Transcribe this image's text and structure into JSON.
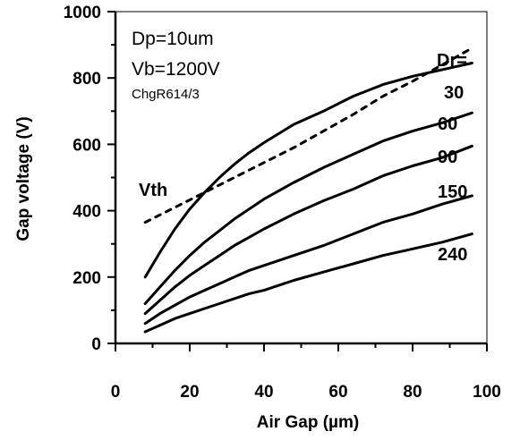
{
  "chart_data": {
    "type": "line",
    "title": "",
    "xlabel": "Air Gap (µm)",
    "ylabel": "Gap voltage (V)",
    "xlim": [
      0,
      100
    ],
    "ylim": [
      0,
      1000
    ],
    "x_ticks": [
      "0",
      "20",
      "40",
      "60",
      "80",
      "100"
    ],
    "y_ticks": [
      "0",
      "200",
      "400",
      "600",
      "800",
      "1000"
    ],
    "grid": false,
    "legend": "none",
    "annotations": {
      "dp": "Dp=10um",
      "vb": "Vb=1200V",
      "chg": "ChgR614/3",
      "dr_header": "Dr="
    },
    "series": [
      {
        "name": "30",
        "style": "solid",
        "x": [
          8,
          12,
          16,
          20,
          24,
          28,
          32,
          36,
          40,
          48,
          56,
          64,
          72,
          80,
          88,
          96
        ],
        "y": [
          200,
          275,
          345,
          405,
          455,
          500,
          540,
          575,
          605,
          660,
          700,
          745,
          780,
          805,
          825,
          845
        ]
      },
      {
        "name": "60",
        "style": "solid",
        "x": [
          8,
          12,
          16,
          20,
          24,
          28,
          32,
          36,
          40,
          48,
          56,
          64,
          72,
          80,
          88,
          96
        ],
        "y": [
          120,
          170,
          220,
          265,
          305,
          340,
          375,
          405,
          435,
          485,
          530,
          570,
          610,
          640,
          665,
          695
        ]
      },
      {
        "name": "90",
        "style": "solid",
        "x": [
          8,
          12,
          16,
          20,
          24,
          28,
          32,
          36,
          40,
          48,
          56,
          64,
          72,
          80,
          88,
          96
        ],
        "y": [
          90,
          130,
          170,
          205,
          235,
          265,
          295,
          320,
          345,
          390,
          430,
          465,
          505,
          535,
          560,
          595
        ]
      },
      {
        "name": "150",
        "style": "solid",
        "x": [
          8,
          12,
          16,
          20,
          24,
          28,
          32,
          36,
          40,
          48,
          56,
          64,
          72,
          80,
          88,
          96
        ],
        "y": [
          60,
          90,
          115,
          140,
          160,
          180,
          200,
          220,
          235,
          265,
          295,
          330,
          365,
          390,
          420,
          445
        ]
      },
      {
        "name": "240",
        "style": "solid",
        "x": [
          8,
          12,
          16,
          20,
          24,
          28,
          32,
          36,
          40,
          48,
          56,
          64,
          72,
          80,
          88,
          96
        ],
        "y": [
          35,
          55,
          75,
          90,
          105,
          120,
          135,
          150,
          160,
          190,
          215,
          240,
          265,
          285,
          305,
          330
        ]
      },
      {
        "name": "Vth",
        "style": "dashed",
        "x": [
          8,
          16,
          24,
          32,
          40,
          48,
          56,
          64,
          72,
          80,
          88,
          96
        ],
        "y": [
          365,
          410,
          455,
          500,
          545,
          590,
          640,
          690,
          745,
          790,
          840,
          890
        ]
      }
    ]
  }
}
